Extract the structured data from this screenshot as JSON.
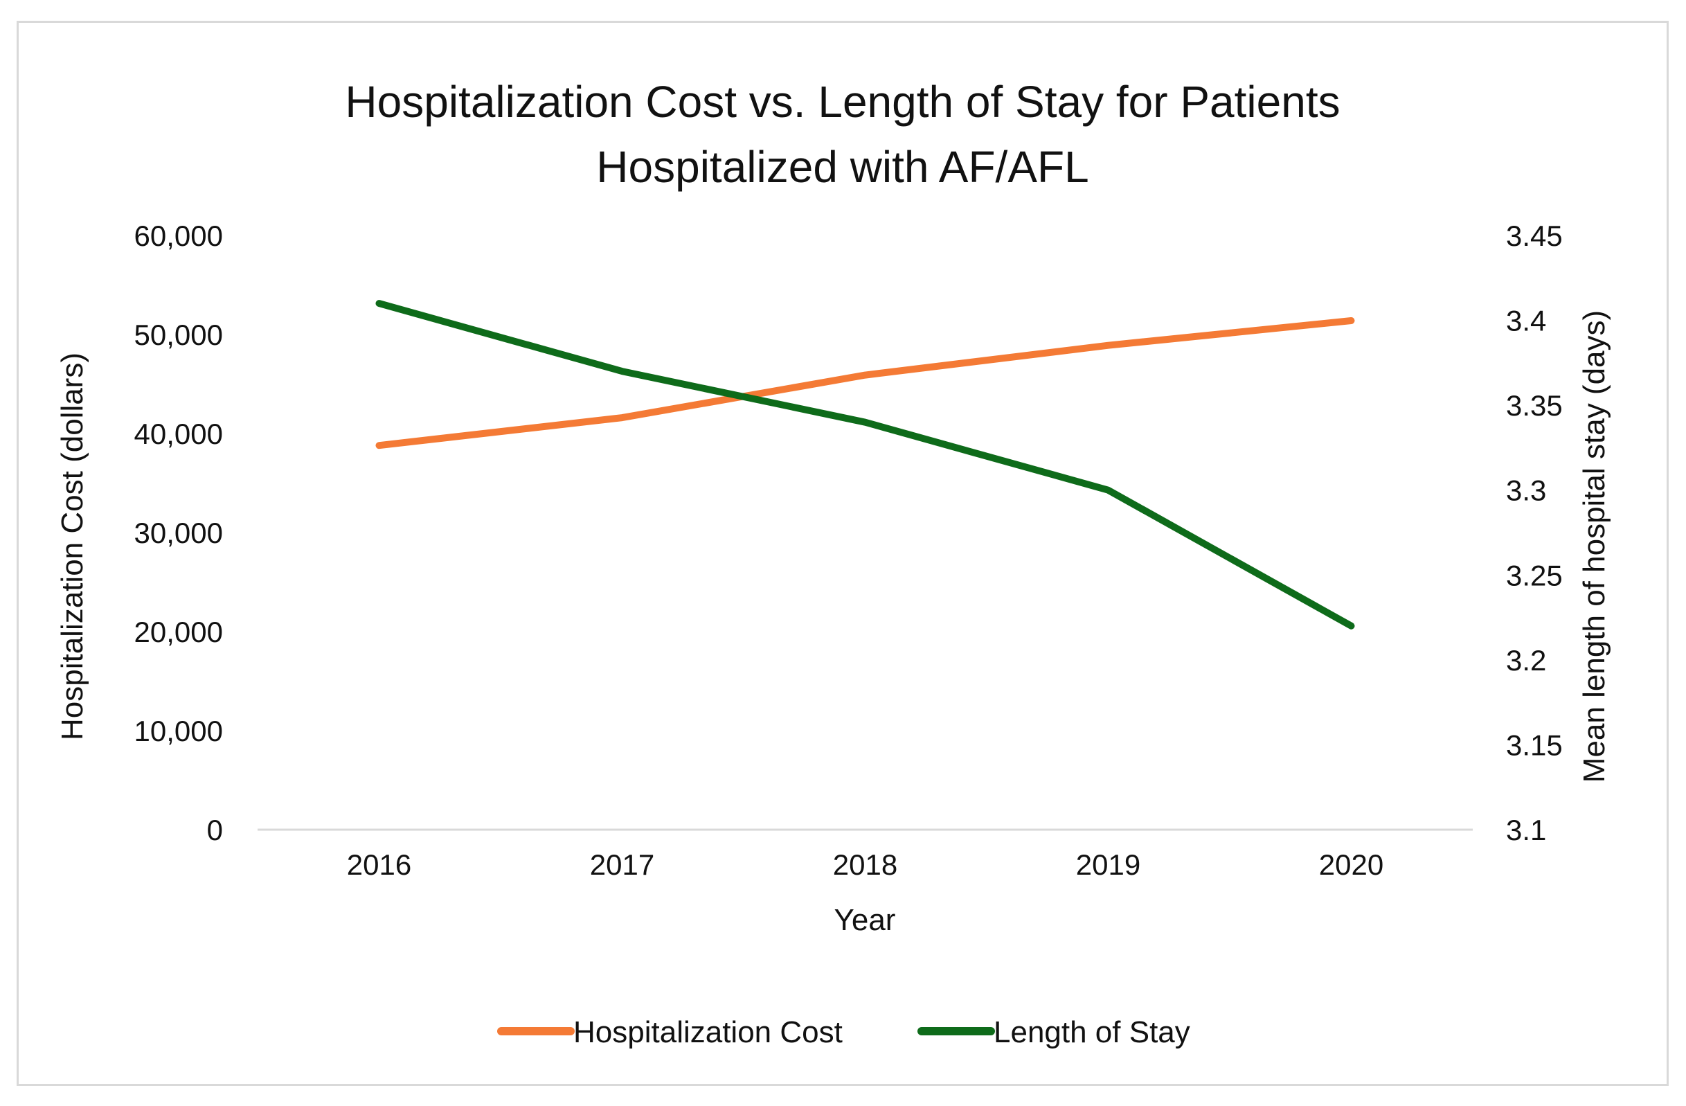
{
  "chart_data": {
    "type": "line",
    "title": [
      "Hospitalization Cost vs. Length of Stay for Patients",
      "Hospitalized with AF/AFL"
    ],
    "xlabel": "Year",
    "ylabel": "Hospitalization Cost (dollars)",
    "y2label": "Mean length of hospital stay (days)",
    "categories": [
      "2016",
      "2017",
      "2018",
      "2019",
      "2020"
    ],
    "y_ticks": [
      "0",
      "10,000",
      "20,000",
      "30,000",
      "40,000",
      "50,000",
      "60,000"
    ],
    "y2_ticks": [
      "3.1",
      "3.15",
      "3.2",
      "3.25",
      "3.3",
      "3.35",
      "3.4",
      "3.45"
    ],
    "ylim": [
      0,
      60000
    ],
    "y2lim": [
      3.1,
      3.45
    ],
    "legend_position": "bottom",
    "series": [
      {
        "name": "Hospitalization Cost",
        "axis": "left",
        "color": "#f47a35",
        "values": [
          38800,
          41600,
          45900,
          48900,
          51400
        ]
      },
      {
        "name": "Length of Stay",
        "axis": "right",
        "color": "#0e6b1a",
        "values": [
          3.41,
          3.37,
          3.34,
          3.3,
          3.22
        ]
      }
    ]
  }
}
